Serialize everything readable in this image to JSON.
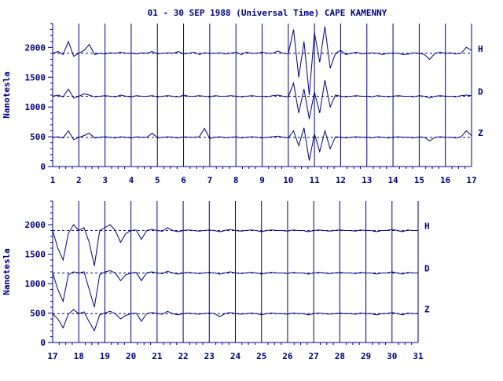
{
  "title": "01 - 30 SEP 1988 (Universal Time) CAPE KAMENNY",
  "colors": {
    "ink": "#000080",
    "background": "#ffffff"
  },
  "chart_data": [
    {
      "type": "line",
      "panel": "top",
      "ylabel": "Nanotesla",
      "xlim": [
        1,
        17
      ],
      "ylim": [
        0,
        2400
      ],
      "y_ticks": [
        0,
        500,
        1000,
        1500,
        2000
      ],
      "x_ticks": [
        1,
        2,
        3,
        4,
        5,
        6,
        7,
        8,
        9,
        10,
        11,
        12,
        13,
        14,
        15,
        16,
        17
      ],
      "grid": "vertical lines at each day",
      "series": [
        {
          "name": "H",
          "baseline": 1900,
          "values": [
            1900,
            1930,
            1880,
            2100,
            1850,
            1900,
            1950,
            2050,
            1880,
            1900,
            1890,
            1910,
            1900,
            1920,
            1900,
            1900,
            1890,
            1910,
            1900,
            1930,
            1890,
            1900,
            1910,
            1900,
            1930,
            1890,
            1900,
            1920,
            1880,
            1910,
            1900,
            1900,
            1910,
            1890,
            1900,
            1920,
            1880,
            1920,
            1900,
            1900,
            1920,
            1900,
            1900,
            1940,
            1900,
            1890,
            2300,
            1500,
            2100,
            1200,
            2250,
            1750,
            2350,
            1650,
            1900,
            1950,
            1880,
            1900,
            1920,
            1890,
            1900,
            1910,
            1900,
            1880,
            1900,
            1900,
            1900,
            1880,
            1890,
            1910,
            1900,
            1880,
            1800,
            1900,
            1920,
            1900,
            1910,
            1890,
            1900,
            2000,
            1950
          ]
        },
        {
          "name": "D",
          "baseline": 1180,
          "values": [
            1180,
            1200,
            1170,
            1300,
            1150,
            1180,
            1220,
            1200,
            1170,
            1180,
            1190,
            1180,
            1170,
            1200,
            1180,
            1170,
            1190,
            1180,
            1180,
            1190,
            1170,
            1180,
            1190,
            1180,
            1170,
            1200,
            1180,
            1180,
            1190,
            1180,
            1170,
            1190,
            1180,
            1180,
            1190,
            1180,
            1170,
            1180,
            1190,
            1180,
            1180,
            1170,
            1190,
            1200,
            1180,
            1170,
            1400,
            900,
            1300,
            800,
            1250,
            900,
            1450,
            1000,
            1200,
            1180,
            1170,
            1180,
            1190,
            1180,
            1180,
            1170,
            1190,
            1180,
            1170,
            1180,
            1190,
            1180,
            1180,
            1170,
            1190,
            1180,
            1150,
            1180,
            1190,
            1180,
            1180,
            1170,
            1190,
            1200,
            1190
          ]
        },
        {
          "name": "Z",
          "baseline": 490,
          "values": [
            490,
            500,
            480,
            600,
            450,
            490,
            520,
            560,
            480,
            490,
            500,
            490,
            480,
            500,
            490,
            480,
            500,
            490,
            490,
            560,
            480,
            490,
            500,
            490,
            480,
            500,
            490,
            490,
            500,
            640,
            470,
            490,
            500,
            480,
            490,
            500,
            480,
            490,
            500,
            490,
            480,
            490,
            500,
            510,
            490,
            480,
            600,
            350,
            650,
            100,
            550,
            250,
            600,
            300,
            500,
            490,
            480,
            490,
            500,
            490,
            490,
            480,
            500,
            490,
            480,
            490,
            500,
            490,
            490,
            480,
            500,
            490,
            430,
            490,
            500,
            490,
            490,
            480,
            500,
            600,
            520
          ]
        }
      ]
    },
    {
      "type": "line",
      "panel": "bottom",
      "ylabel": "Nanotesla",
      "xlim": [
        17,
        31
      ],
      "ylim": [
        0,
        2400
      ],
      "y_ticks": [
        0,
        500,
        1000,
        1500,
        2000
      ],
      "x_ticks": [
        17,
        18,
        19,
        20,
        21,
        22,
        23,
        24,
        25,
        26,
        27,
        28,
        29,
        30,
        31
      ],
      "grid": "vertical lines at each day",
      "series": [
        {
          "name": "H",
          "baseline": 1900,
          "values": [
            1900,
            1600,
            1400,
            1850,
            2000,
            1900,
            1950,
            1700,
            1300,
            1900,
            1950,
            2000,
            1900,
            1700,
            1850,
            1900,
            1910,
            1750,
            1900,
            1920,
            1900,
            1890,
            1950,
            1900,
            1880,
            1900,
            1910,
            1900,
            1890,
            1900,
            1910,
            1900,
            1880,
            1900,
            1920,
            1900,
            1890,
            1900,
            1910,
            1900,
            1880,
            1900,
            1910,
            1900,
            1900,
            1890,
            1910,
            1900,
            1900,
            1880,
            1900,
            1910,
            1900,
            1890,
            1900,
            1910,
            1900,
            1900,
            1890,
            1910,
            1900,
            1900,
            1880,
            1900,
            1900,
            1920,
            1900,
            1880,
            1910,
            1900,
            1900
          ]
        },
        {
          "name": "D",
          "baseline": 1180,
          "values": [
            1180,
            900,
            700,
            1150,
            1200,
            1180,
            1200,
            900,
            600,
            1150,
            1200,
            1220,
            1180,
            1050,
            1150,
            1180,
            1190,
            1050,
            1180,
            1200,
            1180,
            1170,
            1210,
            1180,
            1160,
            1180,
            1190,
            1180,
            1170,
            1180,
            1190,
            1180,
            1160,
            1180,
            1200,
            1180,
            1170,
            1180,
            1190,
            1180,
            1160,
            1180,
            1190,
            1180,
            1180,
            1170,
            1190,
            1180,
            1180,
            1160,
            1180,
            1190,
            1180,
            1170,
            1180,
            1190,
            1180,
            1180,
            1170,
            1190,
            1180,
            1180,
            1160,
            1180,
            1180,
            1200,
            1180,
            1160,
            1190,
            1180,
            1180
          ]
        },
        {
          "name": "Z",
          "baseline": 490,
          "values": [
            490,
            400,
            250,
            480,
            560,
            490,
            520,
            350,
            200,
            470,
            500,
            530,
            490,
            400,
            460,
            490,
            500,
            360,
            490,
            510,
            490,
            480,
            530,
            490,
            470,
            490,
            500,
            490,
            480,
            490,
            500,
            490,
            440,
            490,
            510,
            490,
            480,
            490,
            500,
            490,
            470,
            490,
            500,
            490,
            490,
            480,
            500,
            490,
            490,
            470,
            490,
            500,
            490,
            480,
            490,
            500,
            490,
            490,
            480,
            500,
            490,
            490,
            470,
            490,
            490,
            510,
            490,
            470,
            500,
            490,
            490
          ]
        }
      ]
    }
  ]
}
